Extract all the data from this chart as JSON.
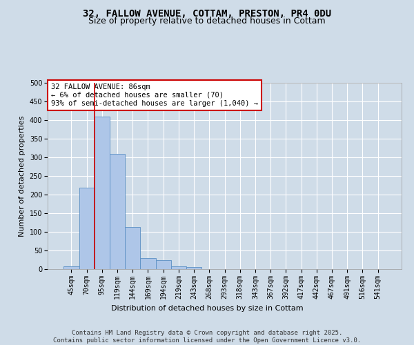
{
  "title_line1": "32, FALLOW AVENUE, COTTAM, PRESTON, PR4 0DU",
  "title_line2": "Size of property relative to detached houses in Cottam",
  "xlabel": "Distribution of detached houses by size in Cottam",
  "ylabel": "Number of detached properties",
  "categories": [
    "45sqm",
    "70sqm",
    "95sqm",
    "119sqm",
    "144sqm",
    "169sqm",
    "194sqm",
    "219sqm",
    "243sqm",
    "268sqm",
    "293sqm",
    "318sqm",
    "343sqm",
    "367sqm",
    "392sqm",
    "417sqm",
    "442sqm",
    "467sqm",
    "491sqm",
    "516sqm",
    "541sqm"
  ],
  "values": [
    8,
    218,
    410,
    310,
    113,
    30,
    24,
    8,
    6,
    0,
    0,
    0,
    0,
    0,
    0,
    0,
    0,
    0,
    0,
    0,
    0
  ],
  "bar_color": "#aec6e8",
  "bar_edge_color": "#5a8fc4",
  "annotation_text": "32 FALLOW AVENUE: 86sqm\n← 6% of detached houses are smaller (70)\n93% of semi-detached houses are larger (1,040) →",
  "annotation_box_color": "#ffffff",
  "annotation_box_edge_color": "#cc0000",
  "red_line_color": "#cc0000",
  "background_color": "#cfdce8",
  "plot_bg_color": "#cfdce8",
  "ylim": [
    0,
    500
  ],
  "yticks": [
    0,
    50,
    100,
    150,
    200,
    250,
    300,
    350,
    400,
    450,
    500
  ],
  "grid_color": "#ffffff",
  "footer_text": "Contains HM Land Registry data © Crown copyright and database right 2025.\nContains public sector information licensed under the Open Government Licence v3.0.",
  "title_fontsize": 10,
  "subtitle_fontsize": 9,
  "axis_label_fontsize": 8,
  "tick_fontsize": 7,
  "annotation_fontsize": 7.5,
  "footer_fontsize": 6.5
}
